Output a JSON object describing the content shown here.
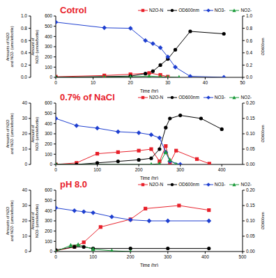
{
  "chart_data": [
    {
      "type": "line",
      "title": "Cotrol",
      "xlabel": "Time (hr)",
      "ylabel": "Amount of NO3- (umole/bottle)",
      "y2label": "Amounts of N2O and NO2- (umole/bottle)",
      "y3label": "OD600nm",
      "xlim": [
        0,
        50
      ],
      "xticks": [
        0,
        10,
        20,
        30,
        40,
        50
      ],
      "ylim": [
        0,
        600
      ],
      "yticks": [
        0,
        100,
        200,
        300,
        400,
        500,
        600
      ],
      "y2lim": [
        0,
        1
      ],
      "y2ticks": [
        {
          "value": 0,
          "label": "0.0"
        },
        0.2,
        0.4,
        0.6,
        0.8,
        {
          "value": 1,
          "label": "1.0"
        }
      ],
      "y3lim": [
        0,
        1
      ],
      "y3ticks": [
        {
          "value": 0,
          "label": "0.0"
        },
        0.2,
        0.4,
        0.6,
        0.8,
        {
          "value": 1,
          "label": "1.0"
        }
      ],
      "series": [
        {
          "name": "N2O-N",
          "color": "#e8202a",
          "marker": "square",
          "axis": "y2",
          "x": [
            0,
            13,
            20,
            25,
            28,
            30
          ],
          "values": [
            0.01,
            0.03,
            0.05,
            0.07,
            0.04,
            0.01
          ]
        },
        {
          "name": "OD600nm",
          "color": "#000000",
          "marker": "circle",
          "axis": "y3",
          "x": [
            0,
            20,
            24,
            26,
            28,
            30,
            32,
            36,
            45
          ],
          "values": [
            0,
            0.02,
            0.06,
            0.1,
            0.2,
            0.3,
            0.45,
            0.75,
            0.71
          ]
        },
        {
          "name": "NO3-",
          "color": "#1e3fd0",
          "marker": "diamond",
          "axis": "y",
          "x": [
            0,
            13,
            20,
            24,
            26,
            28,
            30,
            32,
            36,
            45
          ],
          "values": [
            540,
            485,
            480,
            360,
            330,
            290,
            200,
            100,
            10,
            0
          ]
        },
        {
          "name": "NO2-",
          "color": "#1a9a3a",
          "marker": "triangle",
          "axis": "y2",
          "x": [
            0,
            13,
            20,
            25,
            28,
            30,
            33
          ],
          "values": [
            0,
            0.005,
            0.01,
            0.02,
            0.01,
            0.005,
            0
          ]
        }
      ]
    },
    {
      "type": "line",
      "title": "0.7% of NaCl",
      "xlabel": "Time (hr)",
      "ylabel": "Amount of NO3- (umole/bottle)",
      "y2label": "Amounts of N2O and NO2- (umole/bottle)",
      "y3label": "OD600nm",
      "xlim": [
        0,
        450
      ],
      "xticks": [
        0,
        100,
        200,
        300,
        400
      ],
      "ylim": [
        0,
        600
      ],
      "yticks": [
        0,
        100,
        200,
        300,
        400,
        500,
        600
      ],
      "y2lim": [
        0,
        40
      ],
      "y2ticks": [
        0,
        10,
        20,
        30,
        40
      ],
      "y3lim": [
        0,
        0.2
      ],
      "y3ticks": [
        {
          "value": 0,
          "label": "0.00"
        },
        0.05,
        {
          "value": 0.1,
          "label": "0.10"
        },
        0.15,
        {
          "value": 0.2,
          "label": "0.20"
        }
      ],
      "series": [
        {
          "name": "N2O-N",
          "color": "#e8202a",
          "marker": "square",
          "axis": "y2",
          "x": [
            0,
            50,
            100,
            150,
            200,
            230,
            250,
            265,
            275,
            290,
            340,
            370
          ],
          "values": [
            0,
            1,
            7,
            8,
            9,
            10,
            2,
            12,
            1,
            9,
            3.5,
            0.5
          ]
        },
        {
          "name": "OD600nm",
          "color": "#000000",
          "marker": "circle",
          "axis": "y3",
          "x": [
            0,
            50,
            100,
            150,
            200,
            230,
            250,
            265,
            275,
            300,
            350,
            400
          ],
          "values": [
            0,
            0,
            0.005,
            0.01,
            0.015,
            0.02,
            0.05,
            0.12,
            0.15,
            0.16,
            0.15,
            0.115
          ]
        },
        {
          "name": "NO3-",
          "color": "#1e3fd0",
          "marker": "diamond",
          "axis": "y",
          "x": [
            0,
            50,
            100,
            150,
            200,
            230,
            250,
            265,
            275,
            300
          ],
          "values": [
            450,
            380,
            355,
            320,
            310,
            290,
            260,
            120,
            30,
            0
          ]
        },
        {
          "name": "NO2-",
          "color": "#1a9a3a",
          "marker": "triangle",
          "axis": "y2",
          "x": [
            0,
            230,
            250,
            265,
            275,
            290
          ],
          "values": [
            0,
            0,
            0.5,
            8,
            3,
            0
          ]
        }
      ]
    },
    {
      "type": "line",
      "title": "pH 8.0",
      "xlabel": "Time (hr)",
      "ylabel": "Amount of NO3- (umole/bottle)",
      "y2label": "Amounts of N2O and NO2- (umole/bottle)",
      "y3label": "OD600nm",
      "xlim": [
        0,
        500
      ],
      "xticks": [
        0,
        100,
        200,
        300,
        400,
        500
      ],
      "ylim": [
        0,
        600
      ],
      "yticks": [
        0,
        100,
        200,
        300,
        400,
        500,
        600
      ],
      "y2lim": [
        0,
        40
      ],
      "y2ticks": [
        0,
        10,
        20,
        30,
        40
      ],
      "y3lim": [
        0,
        0.2
      ],
      "y3ticks": [
        {
          "value": 0,
          "label": "0.00"
        },
        0.05,
        {
          "value": 0.1,
          "label": "0.10"
        },
        0.15,
        {
          "value": 0.2,
          "label": "0.20"
        }
      ],
      "series": [
        {
          "name": "N2O-N",
          "color": "#e8202a",
          "marker": "square",
          "axis": "y2",
          "x": [
            0,
            50,
            75,
            120,
            200,
            240,
            330,
            410
          ],
          "values": [
            0.5,
            3,
            6,
            16,
            21,
            28,
            30,
            27
          ]
        },
        {
          "name": "OD600nm",
          "color": "#000000",
          "marker": "circle",
          "axis": "y3",
          "x": [
            0,
            50,
            75,
            100,
            200,
            300,
            410
          ],
          "values": [
            0.005,
            0.015,
            0.015,
            0.01,
            0.01,
            0.01,
            0.01
          ]
        },
        {
          "name": "NO3-",
          "color": "#1e3fd0",
          "marker": "diamond",
          "axis": "y",
          "x": [
            0,
            50,
            75,
            100,
            150,
            200,
            250,
            300,
            410
          ],
          "values": [
            427,
            400,
            390,
            380,
            340,
            310,
            300,
            300,
            300
          ]
        },
        {
          "name": "NO2-",
          "color": "#1a9a3a",
          "marker": "triangle",
          "axis": "y2",
          "x": [
            0,
            40,
            60,
            100,
            150,
            200
          ],
          "values": [
            0,
            4,
            4.5,
            1.5,
            0.5,
            0
          ]
        }
      ]
    }
  ]
}
